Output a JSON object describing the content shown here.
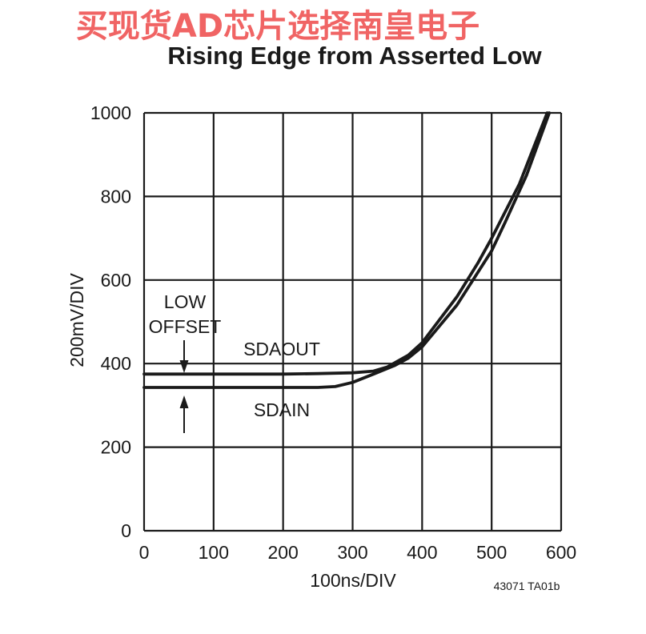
{
  "watermark": "买现货AD芯片选择南皇电子",
  "part_code": "43071 TA01b",
  "annotations": {
    "offset_line1": "LOW",
    "offset_line2": "OFFSET",
    "sdaout": "SDAOUT",
    "sdain": "SDAIN"
  },
  "chart_data": {
    "type": "line",
    "title": "Rising Edge from Asserted Low",
    "xlabel": "100ns/DIV",
    "ylabel": "200mV/DIV",
    "xlim": [
      0,
      600
    ],
    "ylim": [
      0,
      1000
    ],
    "xticks": [
      "0",
      "100",
      "200",
      "300",
      "400",
      "500",
      "600"
    ],
    "yticks": [
      "0",
      "200",
      "400",
      "600",
      "800",
      "1000"
    ],
    "grid": true,
    "series": [
      {
        "name": "SDAOUT",
        "x": [
          0,
          100,
          200,
          250,
          300,
          330,
          350,
          380,
          400,
          450,
          480,
          500,
          540,
          580
        ],
        "y": [
          375,
          375,
          375,
          376,
          378,
          382,
          392,
          420,
          450,
          560,
          640,
          700,
          830,
          1000
        ]
      },
      {
        "name": "SDAIN",
        "x": [
          0,
          100,
          200,
          250,
          275,
          300,
          330,
          360,
          380,
          400,
          450,
          500,
          520,
          550,
          583
        ],
        "y": [
          343,
          343,
          343,
          343,
          345,
          355,
          375,
          395,
          413,
          440,
          540,
          670,
          740,
          850,
          1000
        ]
      }
    ]
  }
}
